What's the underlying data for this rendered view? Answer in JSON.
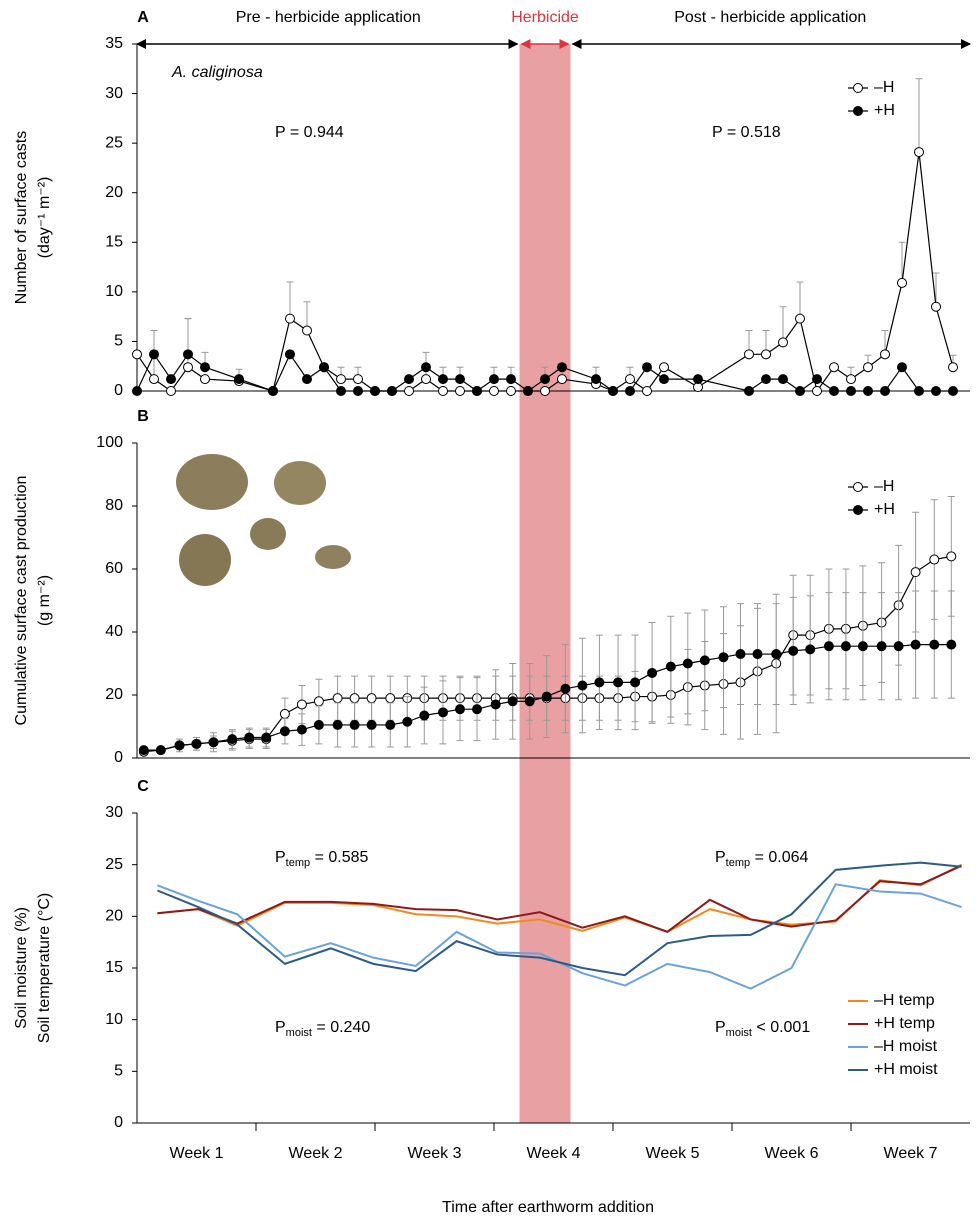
{
  "chart_data": [
    {
      "type": "line",
      "label": "A",
      "species": "A. caliginosa",
      "phases": [
        "Pre - herbicide application",
        "Herbicide",
        "Post - herbicide application"
      ],
      "herbicide_period": [
        22.5,
        25.5
      ],
      "ylabel": [
        "Number of surface casts",
        "(day⁻¹ m⁻²)"
      ],
      "xlim": [
        0,
        49
      ],
      "ylim": [
        0,
        35
      ],
      "yticks": [
        0,
        5,
        10,
        15,
        20,
        25,
        30,
        35
      ],
      "error_direction": "up",
      "legend": "upper right",
      "annotations": [
        "P = 0.944",
        "P = 0.518"
      ],
      "x": [
        0,
        1,
        2,
        3,
        4,
        6,
        8,
        9,
        10,
        11,
        12,
        13,
        14,
        15,
        16,
        17,
        18,
        19,
        20,
        21,
        22,
        23,
        24,
        25,
        27,
        28,
        29,
        30,
        31,
        33,
        36,
        37,
        38,
        39,
        40,
        41,
        42,
        43,
        44,
        45,
        46,
        47,
        48
      ],
      "series": [
        {
          "name": "–H",
          "color": "#000000",
          "marker_fill": "#ffffff",
          "values": [
            3.7,
            1.2,
            0,
            2.4,
            1.2,
            1.0,
            0,
            7.3,
            6.1,
            2.4,
            1.2,
            1.2,
            0,
            0,
            0,
            1.2,
            0,
            0,
            0,
            0,
            0,
            0,
            0,
            1.2,
            0.7,
            0,
            1.2,
            0,
            2.4,
            0.4,
            3.7,
            3.7,
            4.9,
            7.3,
            0,
            2.4,
            1.2,
            2.4,
            3.7,
            10.9,
            24.1,
            8.5,
            2.4
          ],
          "errors": [
            null,
            4.9,
            null,
            4.9,
            null,
            1.2,
            null,
            3.7,
            2.9,
            null,
            1.2,
            1.2,
            null,
            null,
            null,
            1.2,
            null,
            null,
            null,
            null,
            null,
            null,
            null,
            1.2,
            null,
            null,
            1.2,
            null,
            null,
            null,
            2.4,
            2.4,
            3.6,
            3.7,
            null,
            null,
            1.2,
            1.2,
            2.4,
            4.1,
            7.4,
            3.4,
            1.2
          ]
        },
        {
          "name": "+H",
          "color": "#000000",
          "marker_fill": "#000000",
          "values": [
            0,
            3.7,
            1.2,
            3.7,
            2.4,
            1.2,
            0,
            3.7,
            1.2,
            2.4,
            0,
            0,
            0,
            0,
            1.2,
            2.4,
            1.2,
            1.2,
            0,
            1.2,
            1.2,
            0,
            1.2,
            2.4,
            1.2,
            0,
            0,
            2.4,
            1.2,
            1.2,
            0,
            1.2,
            1.2,
            0,
            1.2,
            0,
            0,
            0,
            0,
            2.4,
            0,
            0,
            0
          ],
          "errors": [
            null,
            2.4,
            null,
            3.6,
            1.5,
            null,
            null,
            null,
            null,
            null,
            null,
            null,
            null,
            null,
            null,
            1.5,
            1.2,
            1.2,
            null,
            1.2,
            1.2,
            null,
            1.2,
            null,
            1.2,
            null,
            null,
            null,
            null,
            null,
            null,
            null,
            null,
            null,
            null,
            null,
            null,
            null,
            null,
            null,
            null,
            null,
            null
          ]
        }
      ]
    },
    {
      "type": "line",
      "label": "B",
      "ylabel": [
        "Cumulative surface cast production",
        "(g m⁻²)"
      ],
      "xlim": [
        0,
        49
      ],
      "ylim": [
        0,
        100
      ],
      "yticks": [
        0,
        20,
        40,
        60,
        80,
        100
      ],
      "error_direction": "both",
      "legend": "upper right",
      "x": [
        0.4,
        1.4,
        2.5,
        3.5,
        4.5,
        5.6,
        6.6,
        7.6,
        8.7,
        9.7,
        10.7,
        11.8,
        12.8,
        13.8,
        14.9,
        15.9,
        16.9,
        18,
        19,
        20,
        21.1,
        22.1,
        23.1,
        24.1,
        25.2,
        26.2,
        27.2,
        28.3,
        29.3,
        30.3,
        31.4,
        32.4,
        33.4,
        34.5,
        35.5,
        36.5,
        37.6,
        38.6,
        39.6,
        40.7,
        41.7,
        42.7,
        43.8,
        44.8,
        45.8,
        46.9,
        47.9
      ],
      "series": [
        {
          "name": "–H",
          "color": "#000000",
          "marker_fill": "#ffffff",
          "values": [
            2,
            2.5,
            4,
            4.5,
            5,
            5.5,
            6,
            6,
            14,
            17,
            18,
            19,
            19,
            19,
            19,
            19,
            19,
            19,
            19,
            19,
            19,
            19,
            19,
            19,
            19,
            19,
            19,
            19,
            19.5,
            19.5,
            20,
            22.5,
            23,
            23.5,
            24,
            27.5,
            30,
            39,
            39,
            41,
            41,
            42,
            43,
            48.5,
            59,
            63,
            64
          ],
          "errors": [
            1,
            1,
            2,
            2,
            3,
            3,
            3,
            3,
            5,
            6,
            7,
            7,
            7,
            7,
            7,
            7,
            7,
            7,
            7,
            7,
            7,
            7,
            7,
            7,
            7,
            7,
            7,
            7,
            8,
            8,
            9,
            12,
            14,
            16,
            18,
            20,
            22,
            19,
            19,
            19,
            19,
            19,
            19,
            19,
            19,
            19,
            19
          ]
        },
        {
          "name": "+H",
          "color": "#000000",
          "marker_fill": "#000000",
          "values": [
            2.5,
            2.5,
            4,
            4.5,
            5,
            6,
            6.5,
            6.5,
            8.5,
            9,
            10.5,
            10.5,
            10.5,
            10.5,
            10.5,
            11.5,
            13.5,
            14.5,
            15.5,
            15.5,
            17,
            18,
            18,
            19.5,
            22,
            23,
            24,
            24,
            24,
            27,
            29,
            30,
            31,
            32,
            33,
            33,
            33,
            34,
            34.5,
            35.5,
            35.5,
            35.5,
            35.5,
            35.5,
            36,
            36,
            36
          ],
          "errors": [
            1,
            1,
            1,
            2,
            2,
            3,
            3,
            3,
            4,
            5,
            6,
            7,
            7,
            7,
            7,
            8,
            9,
            10,
            10,
            10,
            11,
            12,
            12,
            13,
            14,
            15,
            15,
            15,
            15,
            16,
            16,
            16,
            16,
            16,
            16,
            16,
            16,
            17,
            17,
            17,
            17,
            17,
            17,
            17,
            17,
            17,
            17
          ]
        }
      ]
    },
    {
      "type": "line",
      "label": "C",
      "ylabel": [
        "Soil moisture (%)",
        "Soil temperature (°C)"
      ],
      "xlim": [
        0,
        49
      ],
      "ylim": [
        0,
        30
      ],
      "yticks": [
        0,
        5,
        10,
        15,
        20,
        25,
        30
      ],
      "legend": "lower right",
      "annotations": [
        [
          "P",
          "temp",
          " = 0.585"
        ],
        [
          "P",
          "temp",
          " = 0.064"
        ],
        [
          "P",
          "moist",
          " = 0.240"
        ],
        [
          "P",
          "moist",
          " < 0.001"
        ]
      ],
      "categories": [
        "Week 1",
        "Week 2",
        "Week 3",
        "Week 4",
        "Week 5",
        "Week 6",
        "Week 7"
      ],
      "xlabel": "Time after earthworm addition",
      "x": [
        1.2,
        3.6,
        5.9,
        8.7,
        11.4,
        13.9,
        16.4,
        18.8,
        21.2,
        23.7,
        26.2,
        28.7,
        31.2,
        33.7,
        36.1,
        38.5,
        41.1,
        43.7,
        46.1,
        48.5
      ],
      "series": [
        {
          "name": "–H temp",
          "color": "#f08a1e",
          "values": [
            20.3,
            20.7,
            19.1,
            21.3,
            21.3,
            21.1,
            20.2,
            20,
            19.3,
            19.7,
            18.6,
            19.9,
            18.5,
            20.7,
            19.7,
            19.2,
            19.5,
            23.5,
            23,
            25
          ]
        },
        {
          "name": "+H temp",
          "color": "#8b1a1a",
          "values": [
            20.3,
            20.7,
            19.3,
            21.4,
            21.4,
            21.2,
            20.7,
            20.6,
            19.7,
            20.4,
            18.9,
            20,
            18.5,
            21.6,
            19.7,
            19,
            19.6,
            23.4,
            23.1,
            24.9
          ]
        },
        {
          "name": "–H moist",
          "color": "#6aa3d9",
          "values": [
            23,
            21.5,
            20.2,
            16.1,
            17.4,
            16,
            15.2,
            18.5,
            16.5,
            16.4,
            14.5,
            13.3,
            15.4,
            14.6,
            13,
            15,
            23.1,
            22.4,
            22.2,
            20.9
          ]
        },
        {
          "name": "+H moist",
          "color": "#2e5a87",
          "values": [
            22.5,
            20.9,
            19.2,
            15.4,
            16.9,
            15.4,
            14.7,
            17.6,
            16.3,
            16,
            15,
            14.3,
            17.4,
            18.1,
            18.2,
            20.2,
            24.5,
            24.9,
            25.2,
            24.8
          ]
        }
      ]
    }
  ]
}
